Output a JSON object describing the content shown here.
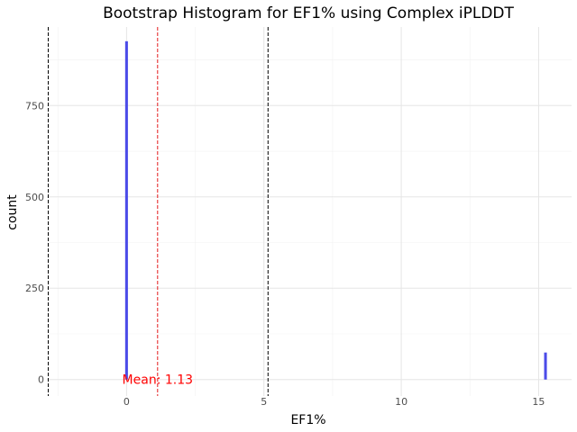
{
  "chart_data": {
    "type": "bar",
    "title": "Bootstrap Histogram for EF1% using Complex iPLDDT",
    "xlabel": "EF1%",
    "ylabel": "count",
    "xlim": [
      -2.9,
      16.2
    ],
    "ylim": [
      -45,
      965
    ],
    "x_ticks": [
      0,
      5,
      10,
      15
    ],
    "y_ticks": [
      0,
      250,
      500,
      750
    ],
    "bin_width": 0.1,
    "bins": [
      {
        "x": 0,
        "count": 926
      },
      {
        "x": 15.25,
        "count": 74
      }
    ],
    "bar_color": "#4b4be8",
    "reference_lines": [
      {
        "name": "lower-ci",
        "x": -2.85,
        "color": "#000000"
      },
      {
        "name": "mean",
        "x": 1.13,
        "color": "#e41a1c"
      },
      {
        "name": "upper-ci",
        "x": 5.15,
        "color": "#000000"
      }
    ],
    "annotation": {
      "text": "Mean: 1.13",
      "x": 1.13,
      "y": 0,
      "color": "#ff0000"
    },
    "grid": true,
    "legend": "none"
  }
}
